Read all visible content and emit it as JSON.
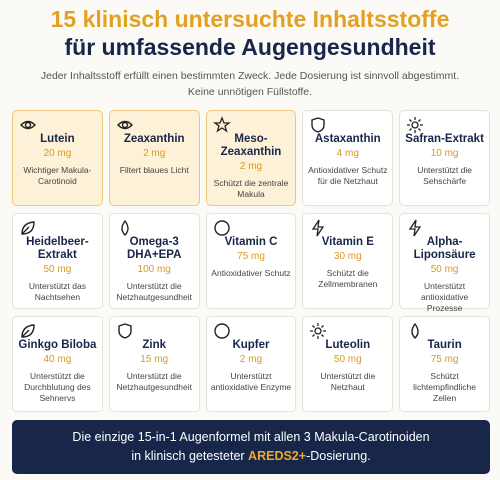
{
  "header": {
    "title_line1": "15 klinisch untersuchte Inhaltsstoffe",
    "title_line2": "für umfassende Augengesundheit",
    "subtitle": "Jeder Inhaltsstoff erfüllt einen bestimmten Zweck. Jede Dosierung ist sinnvoll abgestimmt. Keine unnötigen Füllstoffe."
  },
  "cards": [
    {
      "name": "Lutein",
      "dose": "20 mg",
      "desc": "Wichtiger Makula-Carotinoid"
    },
    {
      "name": "Zeaxanthin",
      "dose": "2 mg",
      "desc": "Filtert blaues Licht"
    },
    {
      "name": "Meso-Zeaxanthin",
      "dose": "2 mg",
      "desc": "Schützt die zentrale Makula"
    },
    {
      "name": "Astaxanthin",
      "dose": "4 mg",
      "desc": "Antioxidativer Schutz für die Netzhaut"
    },
    {
      "name": "Safran-Extrakt",
      "dose": "10 mg",
      "desc": "Unterstützt die Sehschärfe"
    },
    {
      "name": "Heidelbeer-Extrakt",
      "dose": "50 mg",
      "desc": "Unterstützt das Nachtsehen"
    },
    {
      "name": "Omega-3 DHA+EPA",
      "dose": "100 mg",
      "desc": "Unterstützt die Netzhautgesundheit"
    },
    {
      "name": "Vitamin C",
      "dose": "75 mg",
      "desc": "Antioxidativer Schutz"
    },
    {
      "name": "Vitamin E",
      "dose": "30 mg",
      "desc": "Schützt die Zellmembranen"
    },
    {
      "name": "Alpha-Liponsäure",
      "dose": "50 mg",
      "desc": "Unterstützt antioxidative Prozesse"
    },
    {
      "name": "Ginkgo Biloba",
      "dose": "40 mg",
      "desc": "Unterstützt die Durchblutung des Sehnervs"
    },
    {
      "name": "Zink",
      "dose": "15 mg",
      "desc": "Unterstützt die Netzhautgesundheit"
    },
    {
      "name": "Kupfer",
      "dose": "2 mg",
      "desc": "Unterstützt antioxidative Enzyme"
    },
    {
      "name": "Luteolin",
      "dose": "50 mg",
      "desc": "Unterstützt die Netzhaut"
    },
    {
      "name": "Taurin",
      "dose": "75 mg",
      "desc": "Schützt lichtempfindliche Zellen"
    }
  ],
  "banner": {
    "line1": "Die einzige 15-in-1 Augenformel mit allen 3 Makula-Carotinoiden",
    "line2_start": "in klinisch getesteter ",
    "highlight": "AREDS2+",
    "line2_end": "-Dosierung."
  }
}
